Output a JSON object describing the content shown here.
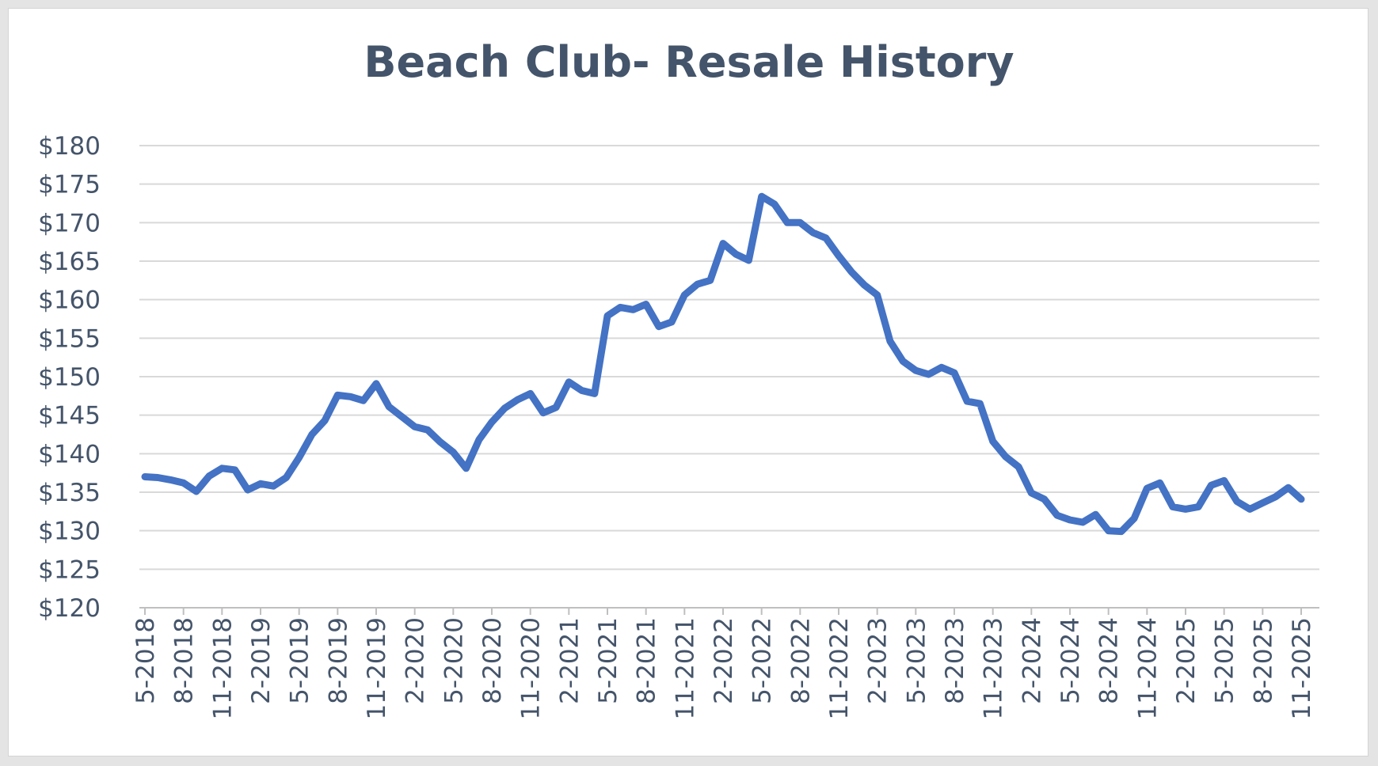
{
  "chart_data": {
    "type": "line",
    "title": "Beach Club- Resale History",
    "xlabel": "",
    "ylabel": "",
    "ylim": [
      120,
      180
    ],
    "ytick_step": 5,
    "ytick_prefix": "$",
    "grid": true,
    "legend": "none",
    "colors": {
      "line": "#4472C4",
      "title": "#44546A",
      "axis_text": "#44546A",
      "grid": "#D9D9D9"
    },
    "x_tick_labels": [
      "5-2018",
      "8-2018",
      "11-2018",
      "2-2019",
      "5-2019",
      "8-2019",
      "11-2019",
      "2-2020",
      "5-2020",
      "8-2020",
      "11-2020",
      "2-2021",
      "5-2021",
      "8-2021",
      "11-2021",
      "2-2022",
      "5-2022",
      "8-2022",
      "11-2022",
      "2-2023",
      "5-2023",
      "8-2023",
      "11-2023",
      "2-2024",
      "5-2024",
      "8-2024",
      "11-2024",
      "2-2025",
      "5-2025",
      "8-2025",
      "11-2025"
    ],
    "x": [
      "5-2018",
      "6-2018",
      "7-2018",
      "8-2018",
      "9-2018",
      "10-2018",
      "11-2018",
      "12-2018",
      "1-2019",
      "2-2019",
      "3-2019",
      "4-2019",
      "5-2019",
      "6-2019",
      "7-2019",
      "8-2019",
      "9-2019",
      "10-2019",
      "11-2019",
      "12-2019",
      "1-2020",
      "2-2020",
      "3-2020",
      "4-2020",
      "5-2020",
      "6-2020",
      "7-2020",
      "8-2020",
      "9-2020",
      "10-2020",
      "11-2020",
      "12-2020",
      "1-2021",
      "2-2021",
      "3-2021",
      "4-2021",
      "5-2021",
      "6-2021",
      "7-2021",
      "8-2021",
      "9-2021",
      "10-2021",
      "11-2021",
      "12-2021",
      "1-2022",
      "2-2022",
      "3-2022",
      "4-2022",
      "5-2022",
      "6-2022",
      "7-2022",
      "8-2022",
      "9-2022",
      "10-2022",
      "11-2022",
      "12-2022",
      "1-2023",
      "2-2023",
      "3-2023",
      "4-2023",
      "5-2023",
      "6-2023",
      "7-2023",
      "8-2023",
      "9-2023",
      "10-2023",
      "11-2023",
      "12-2023",
      "1-2024",
      "2-2024",
      "3-2024",
      "4-2024",
      "5-2024",
      "6-2024",
      "7-2024",
      "8-2024",
      "9-2024",
      "10-2024",
      "11-2024",
      "12-2024",
      "1-2025",
      "2-2025",
      "3-2025",
      "4-2025",
      "5-2025",
      "6-2025",
      "7-2025",
      "8-2025",
      "9-2025",
      "10-2025",
      "11-2025"
    ],
    "series": [
      {
        "values": [
          137.0,
          136.9,
          136.6,
          136.2,
          135.1,
          137.1,
          138.1,
          137.9,
          135.3,
          136.1,
          135.8,
          136.9,
          139.5,
          142.5,
          144.3,
          147.6,
          147.4,
          146.9,
          149.1,
          146.1,
          144.8,
          143.5,
          143.1,
          141.5,
          140.2,
          138.1,
          141.8,
          144.1,
          145.9,
          147.0,
          147.8,
          145.3,
          146.0,
          149.3,
          148.2,
          147.8,
          157.9,
          159.0,
          158.7,
          159.4,
          156.5,
          157.1,
          160.6,
          162.0,
          162.5,
          167.3,
          165.9,
          165.1,
          173.4,
          172.4,
          170.0,
          170.0,
          168.7,
          168.0,
          165.7,
          163.6,
          161.9,
          160.6,
          154.6,
          152.0,
          150.8,
          150.3,
          151.2,
          150.5,
          146.8,
          146.5,
          141.6,
          139.6,
          138.3,
          134.9,
          134.1,
          132.0,
          131.4,
          131.1,
          132.1,
          130.0,
          129.9,
          131.6,
          135.5,
          136.2,
          133.1,
          132.8,
          133.1,
          135.9,
          136.5,
          133.8,
          132.8,
          133.6,
          134.4,
          135.6,
          134.1
        ]
      }
    ]
  }
}
